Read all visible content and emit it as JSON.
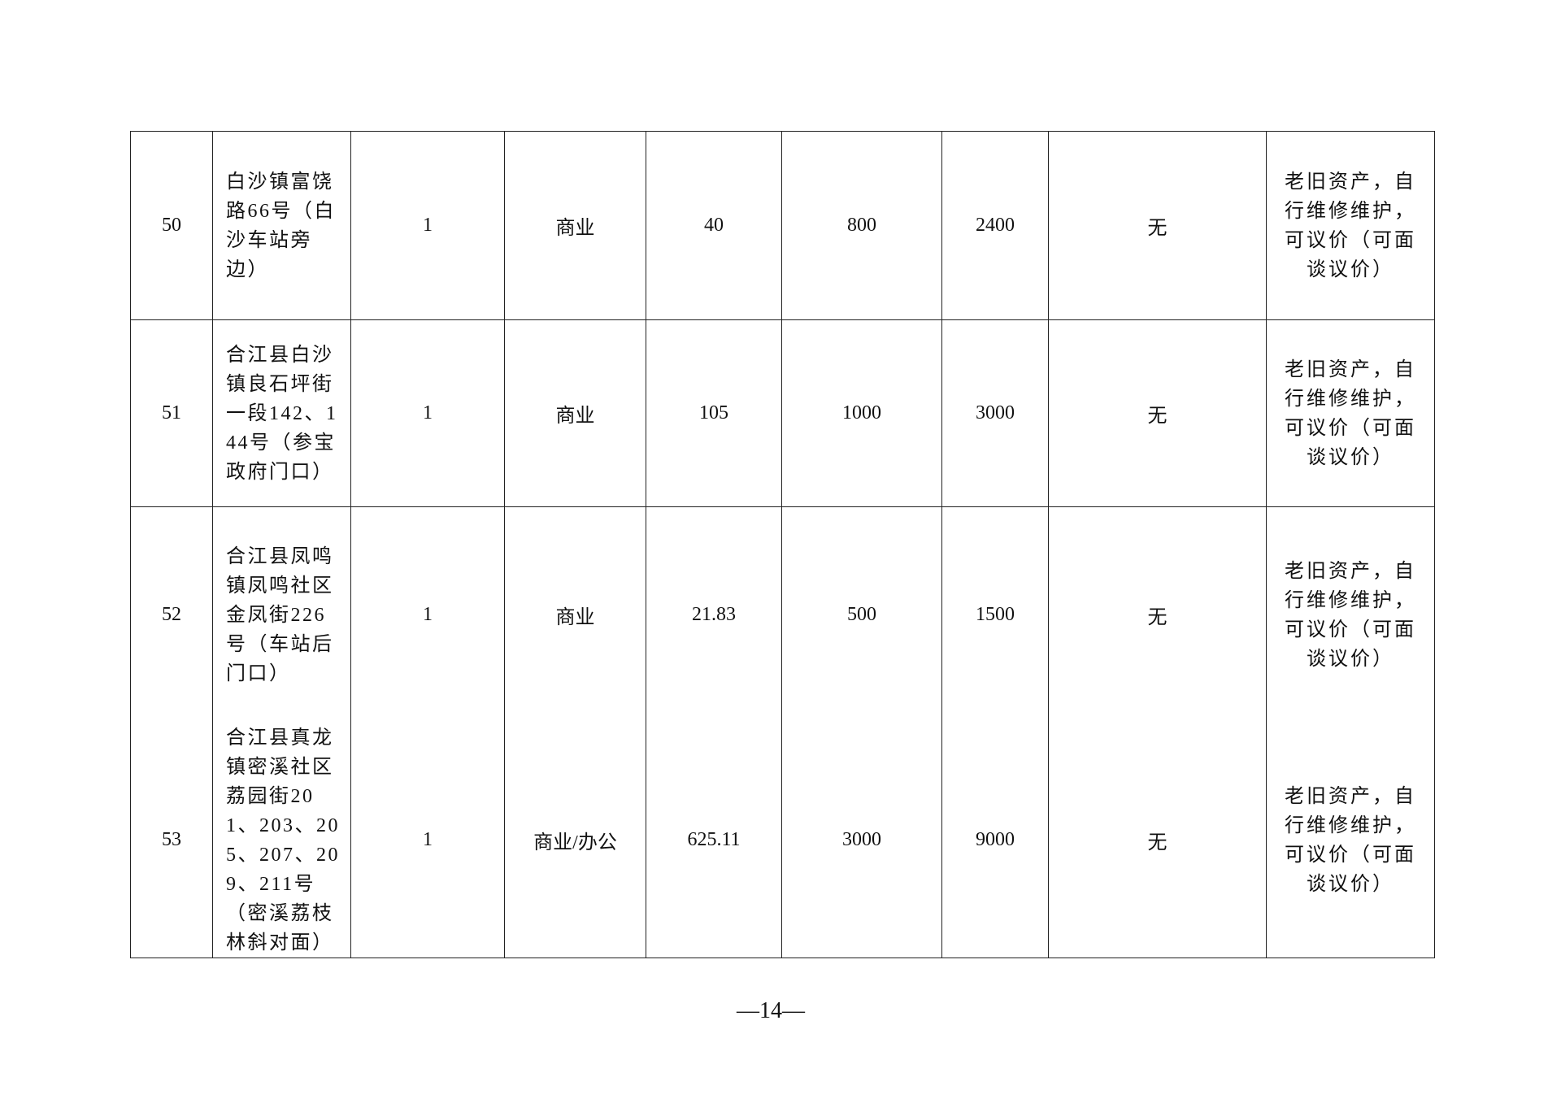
{
  "table": {
    "rows": [
      [
        "50",
        "白沙镇富饶路66号（白沙车站旁边）",
        "1",
        "商业",
        "40",
        "800",
        "2400",
        "无",
        "老旧资产，自行维修维护，可议价（可面谈议价）"
      ],
      [
        "51",
        "合江县白沙镇良石坪街一段142、144号（参宝政府门口）",
        "1",
        "商业",
        "105",
        "1000",
        "3000",
        "无",
        "老旧资产，自行维修维护，可议价（可面谈议价）"
      ],
      [
        "52",
        "合江县凤鸣镇凤鸣社区金凤街226号（车站后门口）",
        "1",
        "商业",
        "21.83",
        "500",
        "1500",
        "无",
        "老旧资产，自行维修维护，可议价（可面谈议价）"
      ],
      [
        "53",
        "合江县真龙镇密溪社区荔园街201、203、205、207、209、211号（密溪荔枝林斜对面）",
        "1",
        "商业/办公",
        "625.11",
        "3000",
        "9000",
        "无",
        "老旧资产，自行维修维护，可议价（可面谈议价）"
      ]
    ]
  },
  "footer": {
    "page_number": "—14—"
  }
}
